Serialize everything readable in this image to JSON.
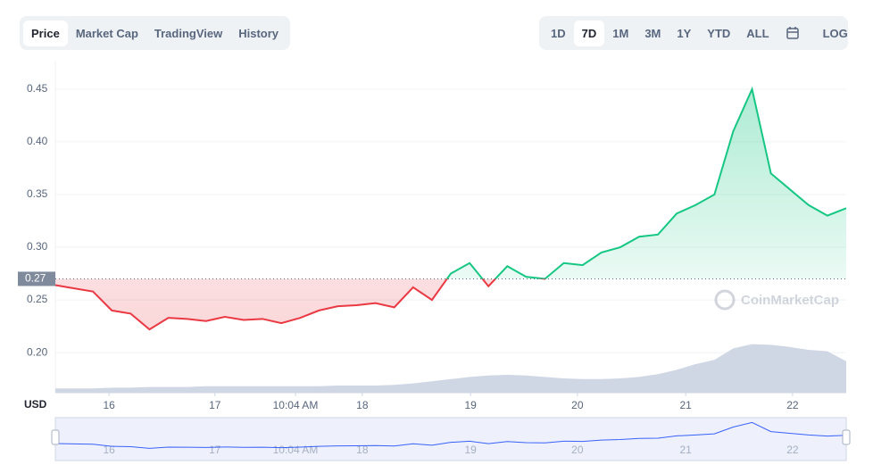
{
  "toolbar": {
    "tabs": [
      "Price",
      "Market Cap",
      "TradingView",
      "History"
    ],
    "active_tab": 0,
    "ranges": [
      "1D",
      "7D",
      "1M",
      "3M",
      "1Y",
      "YTD",
      "ALL"
    ],
    "active_range": 1,
    "log": "LOG"
  },
  "chart_data": {
    "type": "line",
    "currency": "USD",
    "watermark": "CoinMarketCap",
    "x": [
      0,
      4,
      8,
      12,
      16,
      20,
      24,
      28,
      32,
      36,
      40,
      44,
      48,
      52,
      56,
      60,
      64,
      68,
      72,
      76,
      80,
      84,
      88,
      92,
      96,
      100,
      104,
      108,
      112,
      116,
      120,
      124,
      128,
      132,
      136,
      140,
      144,
      148,
      152,
      156,
      160,
      164,
      168
    ],
    "series": [
      {
        "values": [
          0.264,
          0.261,
          0.258,
          0.24,
          0.237,
          0.222,
          0.233,
          0.232,
          0.23,
          0.234,
          0.231,
          0.232,
          0.228,
          0.233,
          0.24,
          0.244,
          0.245,
          0.247,
          0.243,
          0.262,
          0.25,
          0.275,
          0.285,
          0.263,
          0.282,
          0.272,
          0.27,
          0.285,
          0.283,
          0.295,
          0.3,
          0.31,
          0.312,
          0.332,
          0.34,
          0.35,
          0.41,
          0.45,
          0.37,
          0.355,
          0.34,
          0.33,
          0.337
        ],
        "up_color": "#16c784",
        "down_color": "#ea3943"
      },
      {
        "values": [
          6,
          6,
          6,
          7,
          7,
          8,
          8,
          8,
          9,
          9,
          9,
          9,
          9,
          9,
          9,
          10,
          10,
          10,
          11,
          13,
          16,
          19,
          22,
          24,
          25,
          24,
          22,
          20,
          19,
          19,
          20,
          22,
          26,
          32,
          40,
          46,
          62,
          68,
          67,
          64,
          60,
          58,
          44
        ],
        "color": "#cfd6e4",
        "ylim": [
          0,
          100
        ]
      }
    ],
    "baseline": {
      "value": 0.27,
      "label": "0.27"
    },
    "xlim": [
      0,
      168
    ],
    "xticks": [
      {
        "value": 11.4,
        "label": "16"
      },
      {
        "value": 33.9,
        "label": "17"
      },
      {
        "value": 51,
        "label": "10:04 AM"
      },
      {
        "value": 65.2,
        "label": "18"
      },
      {
        "value": 88.2,
        "label": "19"
      },
      {
        "value": 110.9,
        "label": "20"
      },
      {
        "value": 133.9,
        "label": "21"
      },
      {
        "value": 156.6,
        "label": "22"
      }
    ],
    "ylim": [
      0.162,
      0.477
    ],
    "yticks": [
      {
        "value": 0.2,
        "label": "0.20"
      },
      {
        "value": 0.25,
        "label": "0.25"
      },
      {
        "value": 0.3,
        "label": "0.30"
      },
      {
        "value": 0.35,
        "label": "0.35"
      },
      {
        "value": 0.4,
        "label": "0.40"
      },
      {
        "value": 0.45,
        "label": "0.45"
      }
    ],
    "grid": true,
    "navigator_color": "#3861fb"
  }
}
